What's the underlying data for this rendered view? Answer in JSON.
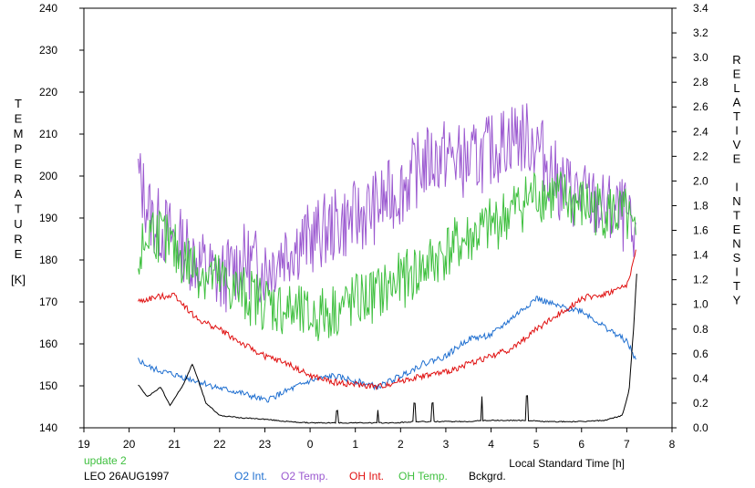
{
  "chart_data": {
    "type": "line",
    "xlabel": "Local Standard Time [h]",
    "ylabel_left": "TEMPERATURE",
    "ylabel_left_unit": "[K]",
    "ylabel_right": "RELATIVE INTENSITY",
    "x_ticks": [
      "19",
      "20",
      "21",
      "22",
      "23",
      "0",
      "1",
      "2",
      "3",
      "4",
      "5",
      "6",
      "7",
      "8"
    ],
    "xlim": [
      19,
      32
    ],
    "ylim_left": [
      140,
      240
    ],
    "y_ticks_left": [
      "140",
      "150",
      "160",
      "170",
      "180",
      "190",
      "200",
      "210",
      "220",
      "230",
      "240"
    ],
    "ylim_right": [
      0.0,
      3.4
    ],
    "y_ticks_right": [
      "0.0",
      "0.2",
      "0.4",
      "0.6",
      "0.8",
      "1.0",
      "1.2",
      "1.4",
      "1.6",
      "1.8",
      "2.0",
      "2.2",
      "2.4",
      "2.6",
      "2.8",
      "3.0",
      "3.2",
      "3.4"
    ],
    "grid": false,
    "annotations": {
      "update": "update 2",
      "station_date": "LEO 26AUG1997"
    },
    "series": [
      {
        "name": "O2 Int.",
        "axis": "right",
        "color": "#1f6fd0",
        "x": [
          20.2,
          20.5,
          21.0,
          21.5,
          22.0,
          22.5,
          23.0,
          23.5,
          24.0,
          24.5,
          25.0,
          25.5,
          26.0,
          26.5,
          27.0,
          27.5,
          28.0,
          28.5,
          29.0,
          29.5,
          30.0,
          30.5,
          31.0,
          31.2
        ],
        "y": [
          0.55,
          0.48,
          0.43,
          0.38,
          0.32,
          0.28,
          0.22,
          0.3,
          0.38,
          0.42,
          0.38,
          0.33,
          0.42,
          0.52,
          0.58,
          0.72,
          0.75,
          0.9,
          1.05,
          0.98,
          0.95,
          0.82,
          0.7,
          0.55
        ]
      },
      {
        "name": "O2 Temp.",
        "axis": "left",
        "color": "#9b59d0",
        "x": [
          20.2,
          20.5,
          21.0,
          21.5,
          22.0,
          22.5,
          23.0,
          23.5,
          24.0,
          24.5,
          25.0,
          25.5,
          26.0,
          26.5,
          27.0,
          27.5,
          28.0,
          28.5,
          29.0,
          29.5,
          30.0,
          30.5,
          31.0,
          31.2
        ],
        "y": [
          200,
          190,
          185,
          180,
          175,
          180,
          178,
          183,
          185,
          188,
          190,
          193,
          197,
          203,
          205,
          203,
          206,
          210,
          208,
          198,
          195,
          192,
          190,
          180
        ]
      },
      {
        "name": "OH Int.",
        "axis": "right",
        "color": "#e01010",
        "x": [
          20.2,
          20.5,
          21.0,
          21.5,
          22.0,
          22.5,
          23.0,
          23.5,
          24.0,
          24.5,
          25.0,
          25.5,
          26.0,
          26.5,
          27.0,
          27.5,
          28.0,
          28.5,
          29.0,
          29.5,
          30.0,
          30.5,
          31.0,
          31.2
        ],
        "y": [
          1.02,
          1.05,
          1.08,
          0.88,
          0.8,
          0.68,
          0.58,
          0.52,
          0.42,
          0.37,
          0.35,
          0.33,
          0.38,
          0.42,
          0.45,
          0.52,
          0.58,
          0.65,
          0.8,
          0.92,
          1.05,
          1.08,
          1.15,
          1.42
        ]
      },
      {
        "name": "OH Temp.",
        "axis": "left",
        "color": "#40c040",
        "x": [
          20.2,
          20.5,
          21.0,
          21.5,
          22.0,
          22.5,
          23.0,
          23.5,
          24.0,
          24.5,
          25.0,
          25.5,
          26.0,
          26.5,
          27.0,
          27.5,
          28.0,
          28.5,
          29.0,
          29.5,
          30.0,
          30.5,
          31.0,
          31.2
        ],
        "y": [
          180,
          188,
          182,
          178,
          175,
          172,
          170,
          168,
          166,
          168,
          170,
          172,
          175,
          178,
          182,
          185,
          188,
          192,
          196,
          195,
          193,
          192,
          190,
          183
        ]
      },
      {
        "name": "Bckgrd.",
        "axis": "right",
        "color": "#000000",
        "x": [
          20.2,
          20.4,
          20.7,
          20.9,
          21.2,
          21.4,
          21.7,
          22.0,
          22.5,
          23.0,
          23.5,
          24.0,
          24.5,
          25.0,
          25.5,
          25.9,
          26.3,
          26.7,
          27.0,
          27.4,
          27.9,
          28.3,
          28.8,
          29.2,
          29.7,
          30.0,
          30.5,
          30.9,
          31.05,
          31.15,
          31.22
        ],
        "y": [
          0.35,
          0.25,
          0.33,
          0.18,
          0.35,
          0.52,
          0.2,
          0.1,
          0.08,
          0.07,
          0.05,
          0.04,
          0.04,
          0.04,
          0.04,
          0.04,
          0.05,
          0.05,
          0.05,
          0.05,
          0.06,
          0.06,
          0.06,
          0.05,
          0.05,
          0.05,
          0.06,
          0.1,
          0.3,
          0.8,
          1.25
        ],
        "spikes_x": [
          24.6,
          25.5,
          26.3,
          26.7,
          27.8,
          28.8
        ],
        "spikes_y": [
          0.1,
          0.1,
          0.15,
          0.15,
          0.2,
          0.2
        ]
      }
    ]
  }
}
